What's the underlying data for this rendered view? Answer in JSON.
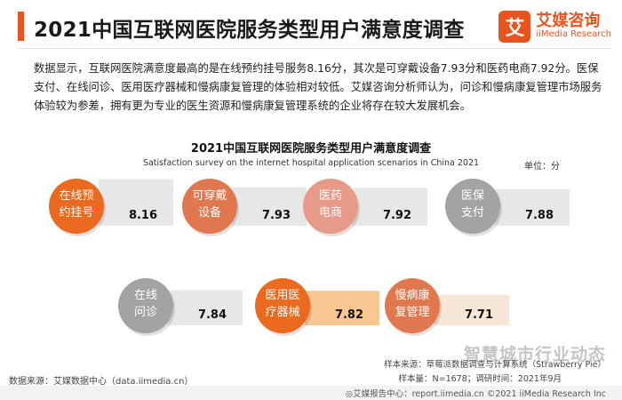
{
  "header": {
    "title": "2021中国互联网医院服务类型用户满意度调查",
    "brand_logo_char": "艾",
    "brand_name": "艾媒咨询",
    "brand_en": "iiMedia Research"
  },
  "summary": "数据显示，互联网医院满意度最高的是在线预约挂号服务8.16分，其次是可穿戴设备7.93分和医药电商7.92分。医保支付、在线问诊、医用医疗器械和慢病康复管理的体验相对较低。艾媒咨询分析师认为，问诊和慢病康复管理市场服务体验较为参差，拥有更为专业的医生资源和慢病康复管理系统的企业将存在较大发展机会。",
  "chart_data": {
    "type": "bar",
    "title": "2021中国互联网医院服务类型用户满意度调查",
    "subtitle": "Satisfaction survey on the internet hospital application scenarios in China 2021",
    "unit": "单位：分",
    "categories": [
      [
        "在线预",
        "约挂号"
      ],
      [
        "可穿戴",
        "设备"
      ],
      [
        "医药",
        "电商"
      ],
      [
        "医保",
        "支付"
      ],
      [
        "在线",
        "问诊"
      ],
      [
        "医用医",
        "疗器械"
      ],
      [
        "慢病康",
        "复管理"
      ]
    ],
    "values": [
      8.16,
      7.93,
      7.92,
      7.88,
      7.84,
      7.82,
      7.71
    ],
    "colors": {
      "orange": "#ea6a1f",
      "salmon": "#e0774e",
      "pink": "#e89a88",
      "grey": "#a3a3a3",
      "box_grey": "#e7e7e7",
      "box_orange": "#f6c790",
      "box_pale": "#f6e6d6"
    }
  },
  "footer": {
    "source": "数据来源：艾媒数据中心（data.iimedia.cn）",
    "method": "样本来源：草莓派数据调查与计算系统（Strawberry Pie）",
    "sample": "样本量：N=1678；调研时间：2021年9月",
    "copyright": "◎艾媒报告中心：report.iimedia.cn ©2021 iiMedia Research Inc",
    "watermark": "智慧城市行业动态"
  }
}
